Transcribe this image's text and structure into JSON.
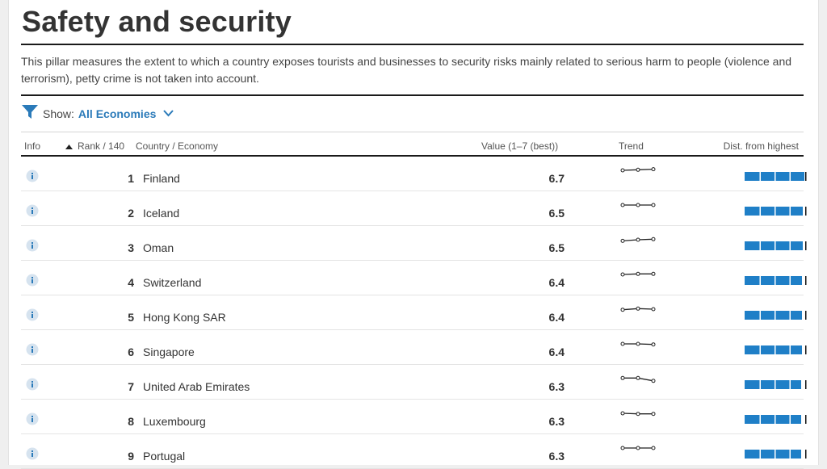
{
  "page": {
    "title": "Safety and security",
    "description": "This pillar measures the extent to which a country exposes tourists and businesses to security risks mainly related to serious harm to people (violence and terrorism), petty crime is not taken into account."
  },
  "filter": {
    "show_label": "Show:",
    "show_value": "All Economies",
    "icon": "filter-icon",
    "chevron": "chevron-down-icon"
  },
  "table": {
    "headers": {
      "info": "Info",
      "rank": "Rank / 140",
      "country": "Country / Economy",
      "value": "Value (1–7 (best))",
      "trend": "Trend",
      "dist": "Dist. from highest"
    },
    "rows": [
      {
        "rank": "1",
        "country": "Finland",
        "value": "6.7",
        "trend": [
          0,
          0.1,
          0.2
        ]
      },
      {
        "rank": "2",
        "country": "Iceland",
        "value": "6.5",
        "trend": [
          0,
          0,
          0
        ]
      },
      {
        "rank": "3",
        "country": "Oman",
        "value": "6.5",
        "trend": [
          -0.2,
          0,
          0.1
        ]
      },
      {
        "rank": "4",
        "country": "Switzerland",
        "value": "6.4",
        "trend": [
          0,
          0.1,
          0.1
        ]
      },
      {
        "rank": "5",
        "country": "Hong Kong SAR",
        "value": "6.4",
        "trend": [
          -0.1,
          0.1,
          0
        ]
      },
      {
        "rank": "6",
        "country": "Singapore",
        "value": "6.4",
        "trend": [
          0,
          0,
          -0.1
        ]
      },
      {
        "rank": "7",
        "country": "United Arab Emirates",
        "value": "6.3",
        "trend": [
          0.1,
          0.1,
          -0.4
        ]
      },
      {
        "rank": "8",
        "country": "Luxembourg",
        "value": "6.3",
        "trend": [
          0,
          -0.1,
          -0.1
        ]
      },
      {
        "rank": "9",
        "country": "Portugal",
        "value": "6.3",
        "trend": [
          0,
          0,
          0
        ]
      }
    ]
  },
  "colors": {
    "accent": "#2a7ab9",
    "bar": "#1f7fc7",
    "rule": "#1a1a1a"
  }
}
